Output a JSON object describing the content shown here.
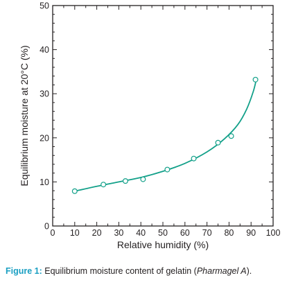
{
  "chart_data": {
    "type": "scatter",
    "xlabel": "Relative humidity (%)",
    "ylabel": "Equilibrium moisture at 20°C (%)",
    "xlim": [
      0,
      100
    ],
    "ylim": [
      0,
      50
    ],
    "x_ticks": [
      0,
      10,
      20,
      30,
      40,
      50,
      60,
      70,
      80,
      90,
      100
    ],
    "y_ticks": [
      0,
      10,
      20,
      30,
      40,
      50
    ],
    "grid": false,
    "marker": "open-circle",
    "line_color": "#12a089",
    "marker_color": "#12a089",
    "series": [
      {
        "points": [
          {
            "x": 10,
            "y": 7.9
          },
          {
            "x": 23,
            "y": 9.4
          },
          {
            "x": 33,
            "y": 10.2
          },
          {
            "x": 41,
            "y": 10.6
          },
          {
            "x": 52,
            "y": 12.8
          },
          {
            "x": 64,
            "y": 15.3
          },
          {
            "x": 75,
            "y": 18.9
          },
          {
            "x": 81,
            "y": 20.4
          },
          {
            "x": 92,
            "y": 33.2
          }
        ],
        "curve": [
          {
            "x": 10,
            "y": 7.9
          },
          {
            "x": 20,
            "y": 9.0
          },
          {
            "x": 30,
            "y": 10.0
          },
          {
            "x": 40,
            "y": 11.0
          },
          {
            "x": 50,
            "y": 12.4
          },
          {
            "x": 60,
            "y": 14.2
          },
          {
            "x": 70,
            "y": 16.8
          },
          {
            "x": 78,
            "y": 19.8
          },
          {
            "x": 84,
            "y": 23.0
          },
          {
            "x": 88,
            "y": 26.5
          },
          {
            "x": 91,
            "y": 30.5
          },
          {
            "x": 92.5,
            "y": 33.5
          }
        ]
      }
    ]
  },
  "caption": {
    "label": "Figure 1:",
    "text": " Equilibrium moisture content of gelatin (",
    "italic": "Pharmagel A",
    "tail": ")."
  }
}
